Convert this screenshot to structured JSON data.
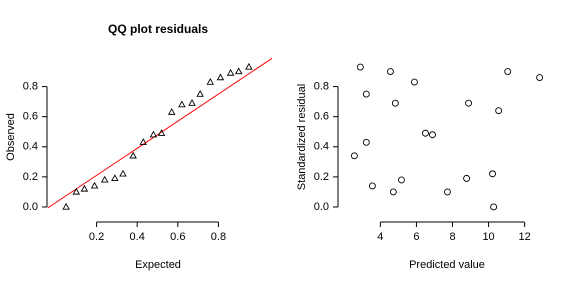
{
  "chart_data": [
    {
      "type": "scatter",
      "title": "QQ plot residuals",
      "x_label": "Expected",
      "y_label": "Observed",
      "marker": "triangle",
      "color": "#000000",
      "x": [
        0.05,
        0.1,
        0.14,
        0.19,
        0.24,
        0.29,
        0.33,
        0.38,
        0.43,
        0.48,
        0.52,
        0.57,
        0.62,
        0.67,
        0.71,
        0.76,
        0.81,
        0.86,
        0.9,
        0.95
      ],
      "values": [
        0.0,
        0.1,
        0.12,
        0.14,
        0.18,
        0.19,
        0.22,
        0.34,
        0.43,
        0.48,
        0.49,
        0.63,
        0.68,
        0.69,
        0.75,
        0.83,
        0.86,
        0.89,
        0.9,
        0.93
      ],
      "reference_line": {
        "intercept": 0.03,
        "slope": 0.9,
        "color": "#ff0000"
      },
      "xlim": [
        0.01,
        0.99
      ],
      "ylim": [
        -0.04,
        0.97
      ],
      "xticks": [
        0.2,
        0.4,
        0.6,
        0.8
      ],
      "yticks": [
        {
          "value": 0,
          "label": "0.0"
        },
        0.2,
        0.4,
        0.6,
        0.8
      ]
    },
    {
      "type": "scatter",
      "x_label": "Predicted value",
      "y_label": "Standardized residual",
      "marker": "circle",
      "color": "#000000",
      "x": [
        2.56,
        2.89,
        3.22,
        3.22,
        3.56,
        4.56,
        4.72,
        4.83,
        5.17,
        5.89,
        6.5,
        6.89,
        7.72,
        8.78,
        8.89,
        10.22,
        10.28,
        10.56,
        11.06,
        12.83
      ],
      "values": [
        0.34,
        0.93,
        0.75,
        0.43,
        0.14,
        0.9,
        0.1,
        0.69,
        0.18,
        0.83,
        0.49,
        0.48,
        0.1,
        0.19,
        0.69,
        0.22,
        0.0,
        0.64,
        0.9,
        0.86
      ],
      "xlim": [
        2.15,
        13.24
      ],
      "ylim": [
        -0.04,
        0.97
      ],
      "xticks": [
        4,
        6,
        8,
        10,
        12
      ],
      "yticks": [
        {
          "value": 0,
          "label": "0.0"
        },
        0.2,
        0.4,
        0.6,
        0.8
      ]
    }
  ]
}
